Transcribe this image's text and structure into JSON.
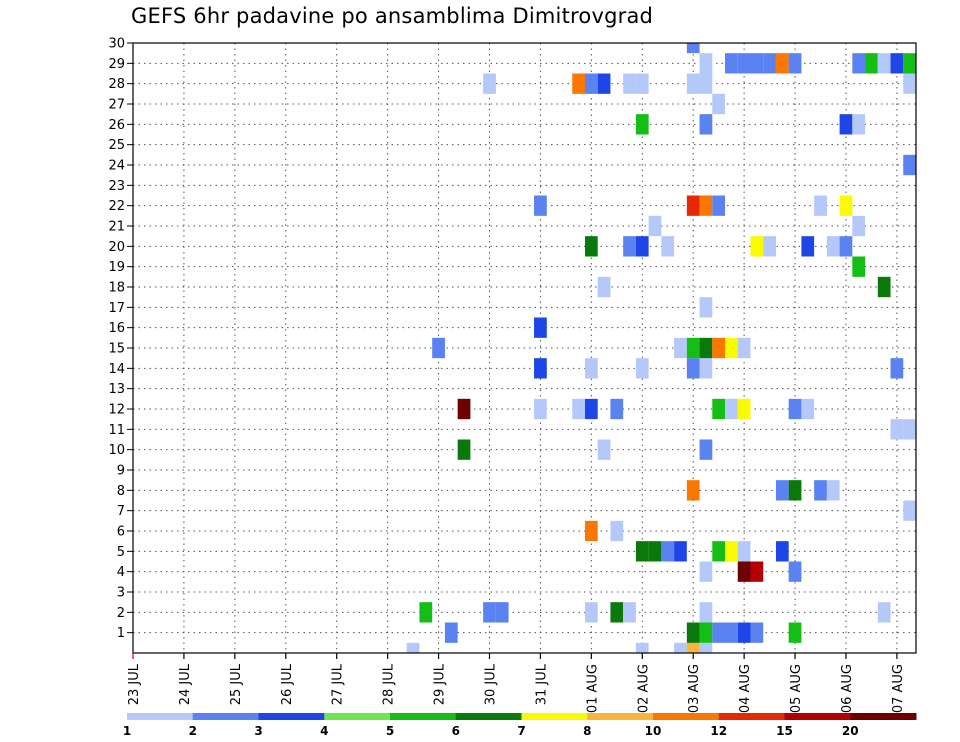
{
  "chart_data": {
    "type": "heatmap",
    "title": "GEFS 6hr padavine po ansamblima Dimitrovgrad",
    "x_tick_labels": [
      "23 JUL",
      "24 JUL",
      "25 JUL",
      "26 JUL",
      "27 JUL",
      "28 JUL",
      "29 JUL",
      "30 JUL",
      "31 JUL",
      "01 AUG",
      "02 AUG",
      "03 AUG",
      "04 AUG",
      "05 AUG",
      "06 AUG",
      "07 AUG"
    ],
    "y_tick_labels": [
      1,
      2,
      3,
      4,
      5,
      6,
      7,
      8,
      9,
      10,
      11,
      12,
      13,
      14,
      15,
      16,
      17,
      18,
      19,
      20,
      21,
      22,
      23,
      24,
      25,
      26,
      27,
      28,
      29,
      30
    ],
    "time_steps": 62,
    "steps_per_day": 4,
    "members_min": 0,
    "members_max": 30,
    "grid": "dotted",
    "legend": {
      "position": "bottom",
      "levels": [
        1,
        2,
        3,
        4,
        5,
        6,
        7,
        8,
        10,
        12,
        15,
        20
      ],
      "colors": [
        "#b4c8fa",
        "#5a82f0",
        "#1e46e6",
        "#6ee650",
        "#14be14",
        "#0a780a",
        "#fafa00",
        "#fab43c",
        "#fa7800",
        "#e62800",
        "#b40000",
        "#6e0000"
      ]
    },
    "cells": [
      [
        22,
        0,
        1
      ],
      [
        40,
        0,
        1
      ],
      [
        43,
        0,
        1
      ],
      [
        44,
        0,
        8
      ],
      [
        45,
        0,
        1
      ],
      [
        25,
        1,
        2
      ],
      [
        44,
        1,
        6
      ],
      [
        45,
        1,
        5
      ],
      [
        46,
        1,
        2
      ],
      [
        47,
        1,
        2
      ],
      [
        48,
        1,
        3
      ],
      [
        49,
        1,
        2
      ],
      [
        52,
        1,
        5
      ],
      [
        23,
        2,
        5
      ],
      [
        28,
        2,
        2
      ],
      [
        29,
        2,
        2
      ],
      [
        36,
        2,
        1
      ],
      [
        38,
        2,
        6
      ],
      [
        39,
        2,
        1
      ],
      [
        45,
        2,
        1
      ],
      [
        59,
        2,
        1
      ],
      [
        45,
        4,
        1
      ],
      [
        48,
        4,
        12
      ],
      [
        49,
        4,
        11
      ],
      [
        52,
        4,
        2
      ],
      [
        40,
        5,
        6
      ],
      [
        41,
        5,
        6
      ],
      [
        42,
        5,
        2
      ],
      [
        43,
        5,
        3
      ],
      [
        46,
        5,
        5
      ],
      [
        47,
        5,
        7
      ],
      [
        48,
        5,
        1
      ],
      [
        51,
        5,
        3
      ],
      [
        36,
        6,
        9
      ],
      [
        38,
        6,
        1
      ],
      [
        61,
        7,
        1
      ],
      [
        44,
        8,
        9
      ],
      [
        51,
        8,
        2
      ],
      [
        52,
        8,
        6
      ],
      [
        54,
        8,
        2
      ],
      [
        55,
        8,
        1
      ],
      [
        26,
        10,
        6
      ],
      [
        37,
        10,
        1
      ],
      [
        45,
        10,
        2
      ],
      [
        60,
        11,
        1
      ],
      [
        61,
        11,
        1
      ],
      [
        26,
        12,
        12
      ],
      [
        32,
        12,
        1
      ],
      [
        35,
        12,
        1
      ],
      [
        36,
        12,
        3
      ],
      [
        38,
        12,
        2
      ],
      [
        46,
        12,
        5
      ],
      [
        47,
        12,
        1
      ],
      [
        48,
        12,
        7
      ],
      [
        52,
        12,
        2
      ],
      [
        53,
        12,
        1
      ],
      [
        32,
        14,
        3
      ],
      [
        36,
        14,
        1
      ],
      [
        40,
        14,
        1
      ],
      [
        44,
        14,
        2
      ],
      [
        45,
        14,
        1
      ],
      [
        60,
        14,
        2
      ],
      [
        24,
        15,
        2
      ],
      [
        43,
        15,
        1
      ],
      [
        44,
        15,
        5
      ],
      [
        45,
        15,
        6
      ],
      [
        46,
        15,
        9
      ],
      [
        47,
        15,
        7
      ],
      [
        48,
        15,
        1
      ],
      [
        32,
        16,
        3
      ],
      [
        45,
        17,
        1
      ],
      [
        37,
        18,
        1
      ],
      [
        59,
        18,
        6
      ],
      [
        57,
        19,
        5
      ],
      [
        36,
        20,
        6
      ],
      [
        39,
        20,
        2
      ],
      [
        40,
        20,
        3
      ],
      [
        42,
        20,
        1
      ],
      [
        49,
        20,
        7
      ],
      [
        50,
        20,
        1
      ],
      [
        53,
        20,
        3
      ],
      [
        55,
        20,
        1
      ],
      [
        56,
        20,
        2
      ],
      [
        41,
        21,
        1
      ],
      [
        57,
        21,
        1
      ],
      [
        32,
        22,
        2
      ],
      [
        44,
        22,
        10
      ],
      [
        45,
        22,
        9
      ],
      [
        46,
        22,
        2
      ],
      [
        54,
        22,
        1
      ],
      [
        56,
        22,
        7
      ],
      [
        61,
        24,
        2
      ],
      [
        40,
        26,
        5
      ],
      [
        45,
        26,
        2
      ],
      [
        56,
        26,
        3
      ],
      [
        57,
        26,
        1
      ],
      [
        46,
        27,
        1
      ],
      [
        28,
        28,
        1
      ],
      [
        35,
        28,
        9
      ],
      [
        36,
        28,
        2
      ],
      [
        37,
        28,
        3
      ],
      [
        39,
        28,
        1
      ],
      [
        40,
        28,
        1
      ],
      [
        44,
        28,
        1
      ],
      [
        45,
        28,
        1
      ],
      [
        61,
        28,
        1
      ],
      [
        45,
        29,
        1
      ],
      [
        47,
        29,
        2
      ],
      [
        48,
        29,
        2
      ],
      [
        49,
        29,
        2
      ],
      [
        50,
        29,
        2
      ],
      [
        51,
        29,
        9
      ],
      [
        52,
        29,
        2
      ],
      [
        57,
        29,
        2
      ],
      [
        58,
        29,
        5
      ],
      [
        59,
        29,
        1
      ],
      [
        60,
        29,
        3
      ],
      [
        61,
        29,
        5
      ],
      [
        44,
        30,
        2
      ]
    ]
  }
}
